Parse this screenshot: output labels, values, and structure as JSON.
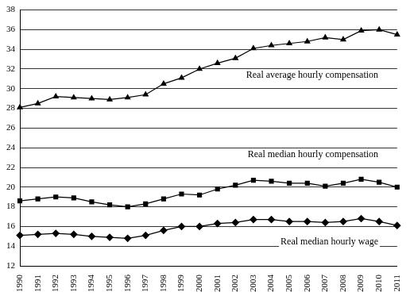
{
  "chart_data": {
    "type": "line",
    "categories": [
      "1990",
      "1991",
      "1992",
      "1993",
      "1994",
      "1995",
      "1996",
      "1997",
      "1998",
      "1999",
      "2000",
      "2001",
      "2002",
      "2003",
      "2004",
      "2005",
      "2006",
      "2007",
      "2008",
      "2009",
      "2010",
      "2011"
    ],
    "series": [
      {
        "name": "Real average hourly compensation",
        "color": "#000000",
        "marker": "triangle",
        "values": [
          28.1,
          28.5,
          29.2,
          29.1,
          29.0,
          28.9,
          29.1,
          29.4,
          30.5,
          31.1,
          32.0,
          32.6,
          33.1,
          34.1,
          34.4,
          34.6,
          34.8,
          35.2,
          35.0,
          35.9,
          36.0,
          35.5
        ]
      },
      {
        "name": "Real median hourly compensation",
        "color": "#000000",
        "marker": "square",
        "values": [
          18.6,
          18.8,
          19.0,
          18.9,
          18.5,
          18.2,
          18.0,
          18.3,
          18.8,
          19.3,
          19.2,
          19.8,
          20.2,
          20.7,
          20.6,
          20.4,
          20.4,
          20.1,
          20.4,
          20.8,
          20.5,
          20.0
        ]
      },
      {
        "name": "Real median hourly wage",
        "color": "#000000",
        "marker": "diamond",
        "values": [
          15.1,
          15.2,
          15.3,
          15.2,
          15.0,
          14.9,
          14.8,
          15.1,
          15.6,
          16.0,
          16.0,
          16.3,
          16.4,
          16.7,
          16.7,
          16.5,
          16.5,
          16.4,
          16.5,
          16.8,
          16.5,
          16.1
        ]
      }
    ],
    "ylim": [
      12,
      38
    ],
    "yticks": [
      12,
      14,
      16,
      18,
      20,
      22,
      24,
      26,
      28,
      30,
      32,
      34,
      36,
      38
    ],
    "grid": true
  }
}
